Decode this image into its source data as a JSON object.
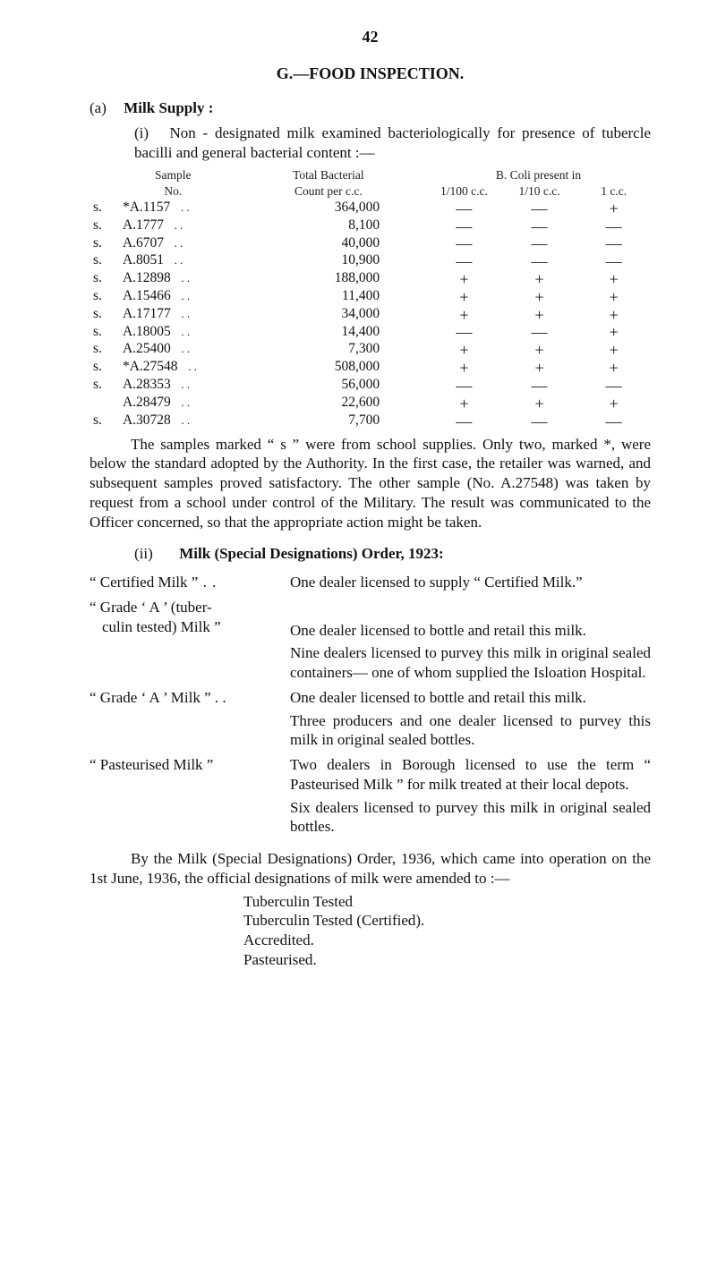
{
  "page_number": "42",
  "section_letter_title": "G.—FOOD INSPECTION.",
  "milk_supply": {
    "a_label": "(a)",
    "heading": "Milk Supply :",
    "i_label": "(i)",
    "i_intro": "Non - designated milk examined bacteriologically for presence of tubercle bacilli and general bacterial content :—"
  },
  "table": {
    "head_sample": "Sample",
    "head_no": "No.",
    "head_total": "Total Bacterial",
    "head_count": "Count per c.c.",
    "head_group": "B. Coli present in",
    "head_b1": "1/100 c.c.",
    "head_b2": "1/10 c.c.",
    "head_b3": "1 c.c.",
    "rows": [
      {
        "s": "s.",
        "sample": "*A.1157",
        "dots": ". .",
        "count": "364,000",
        "b1": "—",
        "b2": "—",
        "b3": "+"
      },
      {
        "s": "s.",
        "sample": "A.1777",
        "dots": ". .",
        "count": "8,100",
        "b1": "—",
        "b2": "—",
        "b3": "—"
      },
      {
        "s": "s.",
        "sample": "A.6707",
        "dots": ". .",
        "count": "40,000",
        "b1": "—",
        "b2": "—",
        "b3": "—"
      },
      {
        "s": "s.",
        "sample": "A.8051",
        "dots": ". .",
        "count": "10,900",
        "b1": "—",
        "b2": "—",
        "b3": "—"
      },
      {
        "s": "s.",
        "sample": "A.12898",
        "dots": ". .",
        "count": "188,000",
        "b1": "+",
        "b2": "+",
        "b3": "+"
      },
      {
        "s": "s.",
        "sample": "A.15466",
        "dots": ". .",
        "count": "11,400",
        "b1": "+",
        "b2": "+",
        "b3": "+"
      },
      {
        "s": "s.",
        "sample": "A.17177",
        "dots": ". .",
        "count": "34,000",
        "b1": "+",
        "b2": "+",
        "b3": "+"
      },
      {
        "s": "s.",
        "sample": "A.18005",
        "dots": ". .",
        "count": "14,400",
        "b1": "—",
        "b2": "—",
        "b3": "+"
      },
      {
        "s": "s.",
        "sample": "A.25400",
        "dots": ". .",
        "count": "7,300",
        "b1": "+",
        "b2": "+",
        "b3": "+"
      },
      {
        "s": "s.",
        "sample": "*A.27548",
        "dots": ". .",
        "count": "508,000",
        "b1": "+",
        "b2": "+",
        "b3": "+"
      },
      {
        "s": "s.",
        "sample": "A.28353",
        "dots": ". .",
        "count": "56,000",
        "b1": "—",
        "b2": "—",
        "b3": "—"
      },
      {
        "s": "",
        "sample": "A.28479",
        "dots": ". .",
        "count": "22,600",
        "b1": "+",
        "b2": "+",
        "b3": "+"
      },
      {
        "s": "s.",
        "sample": "A.30728",
        "dots": ". .",
        "count": "7,700",
        "b1": "—",
        "b2": "—",
        "b3": "—"
      }
    ]
  },
  "samples_para": "The samples marked “ s ” were from school supplies. Only two, marked *, were below the standard adopted by the Authority. In the first case, the retailer was warned, and subsequent samples proved satisfactory. The other sample (No. A.27548) was taken by request from a school under control of the Military. The result was communicated to the Officer concerned, so that the appropriate action might be taken.",
  "ii": {
    "label": "(ii)",
    "heading": "Milk (Special Designations) Order, 1923:"
  },
  "defs": {
    "certified_term": "“ Certified Milk ”",
    "certified_body": "One dealer licensed to supply “ Certi­fied Milk.”",
    "gradeA_tuber_term1": "“ Grade  ‘ A ’  (tuber-",
    "gradeA_tuber_term2": "culin tested) Milk ”",
    "gradeA_tuber_body1": "One dealer licensed to bottle and retail this milk.",
    "gradeA_tuber_body2": "Nine dealers licensed to purvey this milk in original sealed containers— one of whom supplied the Isloation Hospital.",
    "gradeA_term": "“ Grade ‘ A ’ Milk ” . .",
    "gradeA_body1": "One dealer licensed to bottle and retail this milk.",
    "gradeA_body2": "Three producers and one dealer licensed to purvey this milk in original sealed bottles.",
    "pasteurised_term": "“ Pasteurised Milk ”",
    "pasteurised_body1": "Two dealers in Borough licensed to use the term “ Pasteurised Milk ” for milk treated at their local depots.",
    "pasteurised_body2": "Six dealers licensed to purvey this milk in original sealed bottles."
  },
  "order1936_para": "By the Milk (Special Designations) Order, 1936, which came into operation on the 1st June, 1936, the official designations of milk were amended to :—",
  "amend_list": [
    "Tuberculin Tested",
    "Tuberculin Tested (Certified).",
    "Accredited.",
    "Pasteurised."
  ]
}
